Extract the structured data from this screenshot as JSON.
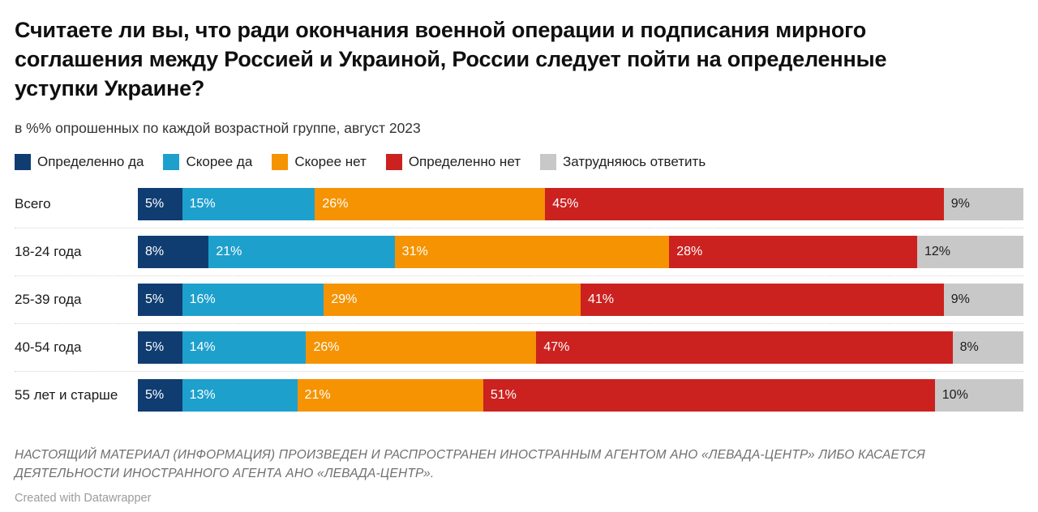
{
  "header": {
    "title": "Считаете ли вы, что ради окончания военной операции и подписания мирного соглашения между Россией и Украиной, России следует пойти на определенные уступки Украине?",
    "subtitle": "в %% опрошенных по каждой возрастной группе, август 2023"
  },
  "chart_data": {
    "type": "bar",
    "stacked": true,
    "orientation": "horizontal",
    "unit": "%",
    "xlim": [
      0,
      100
    ],
    "legend_position": "top",
    "grid": false,
    "categories": [
      "Всего",
      "18-24 года",
      "25-39 года",
      "40-54 года",
      "55 лет и старше"
    ],
    "series": [
      {
        "name": "Определенно да",
        "color": "#103d71",
        "label_color": "#ffffff",
        "values": [
          5,
          8,
          5,
          5,
          5
        ]
      },
      {
        "name": "Скорее да",
        "color": "#1ea0cd",
        "label_color": "#ffffff",
        "values": [
          15,
          21,
          16,
          14,
          13
        ]
      },
      {
        "name": "Скорее нет",
        "color": "#f59303",
        "label_color": "#ffffff",
        "values": [
          26,
          31,
          29,
          26,
          21
        ]
      },
      {
        "name": "Определенно нет",
        "color": "#cb2220",
        "label_color": "#ffffff",
        "values": [
          45,
          28,
          41,
          47,
          51
        ]
      },
      {
        "name": "Затрудняюсь ответить",
        "color": "#c8c8c8",
        "label_color": "#1c1c1c",
        "values": [
          9,
          12,
          9,
          8,
          10
        ]
      }
    ]
  },
  "footer": {
    "disclaimer": "НАСТОЯЩИЙ МАТЕРИАЛ (ИНФОРМАЦИЯ) ПРОИЗВЕДЕН И РАСПРОСТРАНЕН ИНОСТРАННЫМ АГЕНТОМ АНО «ЛЕВАДА-ЦЕНТР» ЛИБО КАСАЕТСЯ ДЕЯТЕЛЬНОСТИ ИНОСТРАННОГО АГЕНТА АНО «ЛЕВАДА-ЦЕНТР».",
    "attribution": "Created with Datawrapper"
  }
}
